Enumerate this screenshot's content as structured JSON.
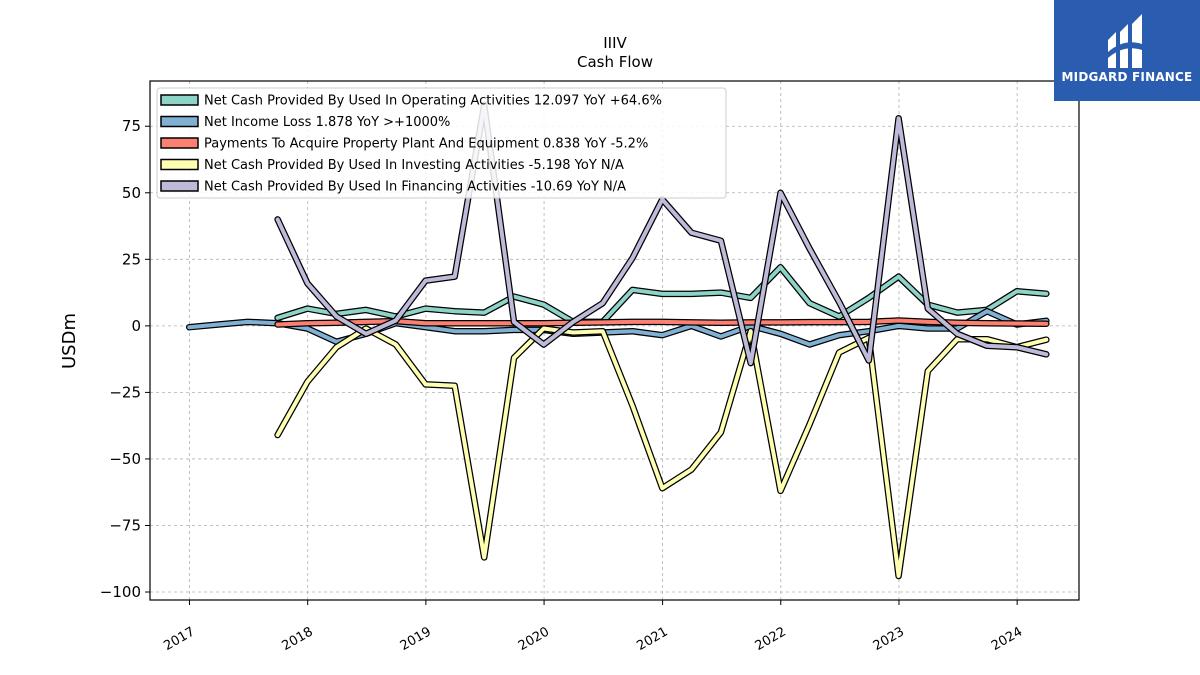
{
  "brand": {
    "name": "MIDGARD FINANCE",
    "background": "#2a5db0",
    "icon": "midgard-logo-icon"
  },
  "chart_data": {
    "type": "line",
    "title": "IIIV",
    "subtitle": "Cash Flow",
    "ylabel": "USDm",
    "xlabel": "",
    "xlim": [
      "2016-09-01",
      "2024-07-10"
    ],
    "ylim": [
      -103,
      92
    ],
    "yticks": [
      75,
      50,
      25,
      0,
      -25,
      -50,
      -75,
      -100
    ],
    "ytick_labels": [
      "75",
      "50",
      "25",
      "0",
      "−25",
      "−50",
      "−75",
      "−100"
    ],
    "xticks": [
      "2017-01-01",
      "2018-01-01",
      "2019-01-01",
      "2020-01-01",
      "2021-01-01",
      "2022-01-01",
      "2023-01-01",
      "2024-01-01"
    ],
    "xtick_labels": [
      "2017",
      "2018",
      "2019",
      "2020",
      "2021",
      "2022",
      "2023",
      "2024"
    ],
    "grid": true,
    "legend_position": "top-left",
    "series": [
      {
        "name": "Net Cash Provided By Used In Operating Activities  12.097 YoY +64.6%",
        "color": "#8dd3c7",
        "x": [
          "2017-09-30",
          "2017-12-31",
          "2018-03-31",
          "2018-06-30",
          "2018-09-30",
          "2018-12-31",
          "2019-03-31",
          "2019-06-30",
          "2019-09-30",
          "2019-12-31",
          "2020-03-31",
          "2020-06-30",
          "2020-09-30",
          "2020-12-31",
          "2021-03-31",
          "2021-06-30",
          "2021-09-30",
          "2021-12-31",
          "2022-03-31",
          "2022-06-30",
          "2022-09-30",
          "2022-12-31",
          "2023-03-31",
          "2023-06-30",
          "2023-09-30",
          "2023-12-31",
          "2024-03-31"
        ],
        "y": [
          3,
          6.5,
          4.5,
          6,
          3.5,
          6.5,
          5.5,
          5,
          11,
          8,
          1.5,
          1.5,
          13.5,
          12,
          12,
          12.5,
          10.5,
          22,
          8.5,
          3.5,
          10.5,
          18.5,
          8,
          5,
          6,
          13,
          12.1
        ]
      },
      {
        "name": "Net Income Loss  1.878 YoY >+1000%",
        "color": "#80b1d3",
        "x": [
          "2016-12-31",
          "2017-03-31",
          "2017-06-30",
          "2017-09-30",
          "2017-12-31",
          "2018-03-31",
          "2018-06-30",
          "2018-09-30",
          "2018-12-31",
          "2019-03-31",
          "2019-06-30",
          "2019-09-30",
          "2019-12-31",
          "2020-03-31",
          "2020-06-30",
          "2020-09-30",
          "2020-12-31",
          "2021-03-31",
          "2021-06-30",
          "2021-09-30",
          "2021-12-31",
          "2022-03-31",
          "2022-06-30",
          "2022-09-30",
          "2022-12-31",
          "2023-03-31",
          "2023-06-30",
          "2023-09-30",
          "2023-12-31",
          "2024-03-31"
        ],
        "y": [
          -0.5,
          0.5,
          1.5,
          1,
          -1,
          -6,
          -3,
          1,
          -0.5,
          -2,
          -2,
          -1.5,
          -1.5,
          -3,
          -2.5,
          -2,
          -3.5,
          0,
          -4,
          0,
          -3,
          -7,
          -3.5,
          -2,
          0,
          -1,
          -1,
          5.5,
          0.5,
          1.9
        ]
      },
      {
        "name": "Payments To Acquire Property Plant And Equipment  0.838 YoY -5.2%",
        "color": "#fb8072",
        "x": [
          "2017-09-30",
          "2017-12-31",
          "2018-03-31",
          "2018-06-30",
          "2018-09-30",
          "2018-12-31",
          "2019-03-31",
          "2019-06-30",
          "2019-09-30",
          "2019-12-31",
          "2020-03-31",
          "2020-06-30",
          "2020-09-30",
          "2020-12-31",
          "2021-03-31",
          "2021-06-30",
          "2021-09-30",
          "2021-12-31",
          "2022-03-31",
          "2022-06-30",
          "2022-09-30",
          "2022-12-31",
          "2023-03-31",
          "2023-06-30",
          "2023-09-30",
          "2023-12-31",
          "2024-03-31"
        ],
        "y": [
          0.5,
          1,
          1.2,
          1.5,
          1.8,
          1,
          1,
          1,
          1,
          1,
          1.2,
          1.3,
          1.5,
          1.5,
          1.3,
          1.2,
          1.3,
          1.3,
          1.4,
          1.4,
          1.5,
          2,
          1.5,
          1.2,
          1,
          0.9,
          0.8
        ]
      },
      {
        "name": "Net Cash Provided By Used In Investing Activities  -5.198 YoY N/A",
        "color": "#ffffb3",
        "x": [
          "2017-09-30",
          "2017-12-31",
          "2018-03-31",
          "2018-06-30",
          "2018-09-30",
          "2018-12-31",
          "2019-03-31",
          "2019-06-30",
          "2019-09-30",
          "2019-12-31",
          "2020-03-31",
          "2020-06-30",
          "2020-09-30",
          "2020-12-31",
          "2021-03-31",
          "2021-06-30",
          "2021-09-30",
          "2021-12-31",
          "2022-03-31",
          "2022-06-30",
          "2022-09-30",
          "2022-12-31",
          "2023-03-31",
          "2023-06-30",
          "2023-09-30",
          "2023-12-31",
          "2024-03-31"
        ],
        "y": [
          -41,
          -21,
          -8,
          -1,
          -7,
          -22,
          -22.5,
          -87,
          -12,
          -1,
          -2.5,
          -2,
          -30,
          -61,
          -54,
          -40,
          -2,
          -62,
          -37,
          -10,
          -4.5,
          -94,
          -17,
          -5,
          -5,
          -8,
          -5.2
        ]
      },
      {
        "name": "Net Cash Provided By Used In Financing Activities  -10.69 YoY N/A",
        "color": "#bebada",
        "x": [
          "2017-09-30",
          "2017-12-31",
          "2018-03-31",
          "2018-06-30",
          "2018-09-30",
          "2018-12-31",
          "2019-03-31",
          "2019-06-30",
          "2019-09-30",
          "2019-12-31",
          "2020-03-31",
          "2020-06-30",
          "2020-09-30",
          "2020-12-31",
          "2021-03-31",
          "2021-06-30",
          "2021-09-30",
          "2021-12-31",
          "2022-03-31",
          "2022-06-30",
          "2022-09-30",
          "2022-12-31",
          "2023-03-31",
          "2023-06-30",
          "2023-09-30",
          "2023-12-31",
          "2024-03-31"
        ],
        "y": [
          40,
          16,
          3.5,
          -3,
          2,
          17,
          18.5,
          83,
          1.5,
          -7,
          1.5,
          8.5,
          25.5,
          47.5,
          35,
          32,
          -14,
          50,
          29,
          9,
          -13,
          78,
          6.5,
          -3,
          -7.5,
          -8,
          -10.7
        ]
      }
    ]
  }
}
